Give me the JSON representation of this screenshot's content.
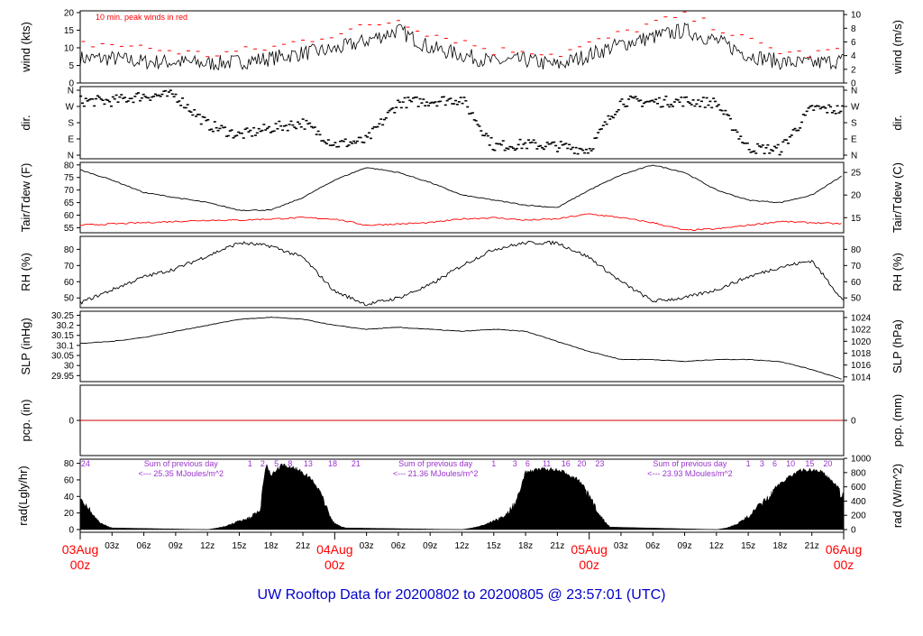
{
  "footer_title": "UW Rooftop Data for 20200802  to  20200805 @ 23:57:01  (UTC)",
  "colors": {
    "axis": "#000000",
    "peak": "#ff0000",
    "dew": "#ff0000",
    "annot": "#9933cc",
    "date": "#ff0000",
    "title": "#0000cc",
    "zero_line": "#cc0000"
  },
  "x_axis": {
    "hour_ticks": [
      "03z",
      "06z",
      "09z",
      "12z",
      "15z",
      "18z",
      "21z",
      "03z",
      "06z",
      "09z",
      "12z",
      "15z",
      "18z",
      "21z",
      "03z",
      "06z",
      "09z",
      "12z",
      "15z",
      "18z",
      "21z"
    ],
    "date_labels": [
      {
        "line1": "03Aug",
        "line2": "00z"
      },
      {
        "line1": "04Aug",
        "line2": "00z"
      },
      {
        "line1": "05Aug",
        "line2": "00z"
      },
      {
        "line1": "06Aug",
        "line2": "00z"
      }
    ]
  },
  "chart_data": [
    {
      "type": "line",
      "name": "wind",
      "ylabel_left": "wind (kts)",
      "ylabel_right": "wind (m/s)",
      "ylim": [
        0,
        20.5
      ],
      "yticks_left": [
        0,
        5,
        10,
        15,
        20
      ],
      "yticks_right": [
        0,
        2,
        4,
        6,
        8,
        10
      ],
      "annotation": "10 min. peak winds in red",
      "x_hours": [
        0,
        3,
        6,
        9,
        12,
        15,
        18,
        21,
        24,
        27,
        30,
        33,
        36,
        39,
        42,
        45,
        48,
        51,
        54,
        57,
        60,
        63,
        66,
        69,
        72
      ],
      "speed": [
        7,
        7,
        6,
        6,
        5.5,
        6,
        7,
        8.5,
        9.5,
        12,
        15,
        10,
        8,
        6,
        6.5,
        5,
        8,
        11,
        13,
        15,
        12,
        8,
        6,
        5.5,
        6.5
      ],
      "peak": [
        11,
        11,
        10,
        9,
        8,
        9,
        10,
        12,
        14,
        16,
        18,
        14,
        12,
        9,
        9.5,
        8,
        11,
        14,
        17,
        19,
        16,
        12,
        9,
        8,
        10
      ]
    },
    {
      "type": "scatter",
      "name": "direction",
      "ylabel_left": "dir.",
      "ylabel_right": "dir.",
      "yticks": [
        "N",
        "E",
        "S",
        "W",
        "N"
      ],
      "x_hours": [
        0,
        3,
        6,
        9,
        12,
        15,
        18,
        21,
        24,
        27,
        30,
        33,
        36,
        39,
        42,
        45,
        48,
        51,
        54,
        57,
        60,
        63,
        66,
        69,
        72
      ],
      "direction_deg": [
        300,
        300,
        330,
        330,
        170,
        110,
        150,
        180,
        60,
        80,
        290,
        300,
        310,
        50,
        60,
        50,
        30,
        300,
        295,
        300,
        290,
        40,
        30,
        260,
        250
      ]
    },
    {
      "type": "line",
      "name": "temperature",
      "ylabel_left": "Tair/Tdew (F)",
      "ylabel_right": "Tair/Tdew (C)",
      "ylim": [
        53,
        81
      ],
      "yticks_left": [
        55,
        60,
        65,
        70,
        75,
        80
      ],
      "yticks_right": [
        15,
        20,
        25
      ],
      "x_hours": [
        0,
        3,
        6,
        9,
        12,
        15,
        18,
        21,
        24,
        27,
        30,
        33,
        36,
        39,
        42,
        45,
        48,
        51,
        54,
        57,
        60,
        63,
        66,
        69,
        72
      ],
      "tair": [
        78,
        74,
        69,
        67,
        65,
        62,
        62,
        67,
        74,
        79,
        77,
        73,
        68,
        66,
        64,
        63,
        70,
        76,
        80,
        77,
        70,
        66,
        65,
        68,
        76
      ],
      "tdew": [
        56,
        56.5,
        57,
        57.5,
        58,
        58,
        58.5,
        59,
        58.5,
        56,
        56.5,
        57,
        58.5,
        59,
        58,
        58.5,
        60.5,
        59,
        57,
        54,
        54.5,
        56,
        57.5,
        57,
        56.5
      ]
    },
    {
      "type": "line",
      "name": "relative-humidity",
      "ylabel_left": "RH (%)",
      "ylabel_right": "RH (%)",
      "ylim": [
        44,
        88
      ],
      "yticks_left": [
        50,
        60,
        70,
        80
      ],
      "yticks_right": [
        50,
        60,
        70,
        80
      ],
      "x_hours": [
        0,
        3,
        6,
        9,
        12,
        15,
        18,
        21,
        24,
        27,
        30,
        33,
        36,
        39,
        42,
        45,
        48,
        51,
        54,
        57,
        60,
        63,
        66,
        69,
        72
      ],
      "rh": [
        47,
        55,
        63,
        68,
        76,
        84,
        82,
        75,
        54,
        46,
        50,
        58,
        70,
        80,
        84,
        84,
        75,
        60,
        48,
        50,
        55,
        63,
        69,
        73,
        48
      ]
    },
    {
      "type": "line",
      "name": "sea-level-pressure",
      "ylabel_left": "SLP (inHg)",
      "ylabel_right": "SLP (hPa)",
      "ylim": [
        29.92,
        30.27
      ],
      "yticks_left": [
        29.95,
        30.0,
        30.05,
        30.1,
        30.15,
        30.2,
        30.25
      ],
      "yticks_right": [
        1014,
        1016,
        1018,
        1020,
        1022,
        1024
      ],
      "x_hours": [
        0,
        3,
        6,
        9,
        12,
        15,
        18,
        21,
        24,
        27,
        30,
        33,
        36,
        39,
        42,
        45,
        48,
        51,
        54,
        57,
        60,
        63,
        66,
        69,
        72
      ],
      "slp": [
        30.11,
        30.12,
        30.14,
        30.17,
        30.2,
        30.23,
        30.24,
        30.23,
        30.2,
        30.18,
        30.19,
        30.18,
        30.17,
        30.18,
        30.17,
        30.12,
        30.07,
        30.03,
        30.03,
        30.02,
        30.03,
        30.03,
        30.02,
        29.98,
        29.93
      ]
    },
    {
      "type": "line",
      "name": "precipitation",
      "ylabel_left": "pcp. (in)",
      "ylabel_right": "pcp. (mm)",
      "yticks_left": [
        0
      ],
      "yticks_right": [
        0
      ],
      "x_hours": [
        0,
        72
      ],
      "values": [
        0,
        0
      ]
    },
    {
      "type": "area",
      "name": "solar-radiation",
      "ylabel_left": "rad(Lgly/hr)",
      "ylabel_right": "rad (W/m^2)",
      "ylim": [
        0,
        85
      ],
      "yticks_left": [
        0,
        20,
        40,
        60,
        80
      ],
      "yticks_right": [
        0,
        200,
        400,
        600,
        800,
        1000
      ],
      "annotations": [
        {
          "text": "Sum of previous day",
          "value": "<--- 25.35 MJoules/m^2",
          "x_hour": 9.5
        },
        {
          "text": "Sum of previous day",
          "value": "<--- 21.36 MJoules/m^2",
          "x_hour": 33.5
        },
        {
          "text": "Sum of previous day",
          "value": "<--- 23.93 MJoules/m^2",
          "x_hour": 57.5
        }
      ],
      "hour_marks": [
        {
          "label": "24",
          "x_hour": 0.5
        },
        {
          "label": "1",
          "x_hour": 16
        },
        {
          "label": "2",
          "x_hour": 17.2
        },
        {
          "label": "5",
          "x_hour": 18.5
        },
        {
          "label": "8",
          "x_hour": 19.8
        },
        {
          "label": "13",
          "x_hour": 21.5
        },
        {
          "label": "18",
          "x_hour": 23.8
        },
        {
          "label": "21",
          "x_hour": 26
        },
        {
          "label": "1",
          "x_hour": 39
        },
        {
          "label": "3",
          "x_hour": 41
        },
        {
          "label": "6",
          "x_hour": 42.2
        },
        {
          "label": "11",
          "x_hour": 44
        },
        {
          "label": "16",
          "x_hour": 45.8
        },
        {
          "label": "20",
          "x_hour": 47.3
        },
        {
          "label": "23",
          "x_hour": 49
        },
        {
          "label": "1",
          "x_hour": 63
        },
        {
          "label": "3",
          "x_hour": 64.3
        },
        {
          "label": "6",
          "x_hour": 65.5
        },
        {
          "label": "10",
          "x_hour": 67
        },
        {
          "label": "15",
          "x_hour": 68.8
        },
        {
          "label": "20",
          "x_hour": 70.5
        }
      ],
      "x_hours": [
        0,
        0.5,
        1,
        1.5,
        2,
        2.5,
        3,
        12,
        13,
        14,
        15,
        16,
        17,
        17.5,
        18,
        19,
        20,
        21,
        22,
        23,
        23.5,
        24,
        25,
        36,
        37,
        38,
        39,
        40,
        41,
        41.5,
        42,
        43,
        44,
        45,
        46,
        47,
        48,
        49,
        50,
        60,
        61,
        62,
        63,
        64,
        65,
        66,
        67,
        68,
        69,
        70,
        71,
        72
      ],
      "values": [
        45,
        35,
        25,
        15,
        8,
        5,
        2,
        0,
        2,
        6,
        12,
        16,
        30,
        82,
        68,
        80,
        78,
        72,
        60,
        40,
        20,
        8,
        2,
        0,
        2,
        6,
        12,
        18,
        35,
        50,
        72,
        75,
        76,
        74,
        70,
        62,
        45,
        20,
        3,
        0,
        2,
        8,
        18,
        32,
        45,
        58,
        68,
        74,
        75,
        72,
        60,
        45
      ]
    }
  ]
}
